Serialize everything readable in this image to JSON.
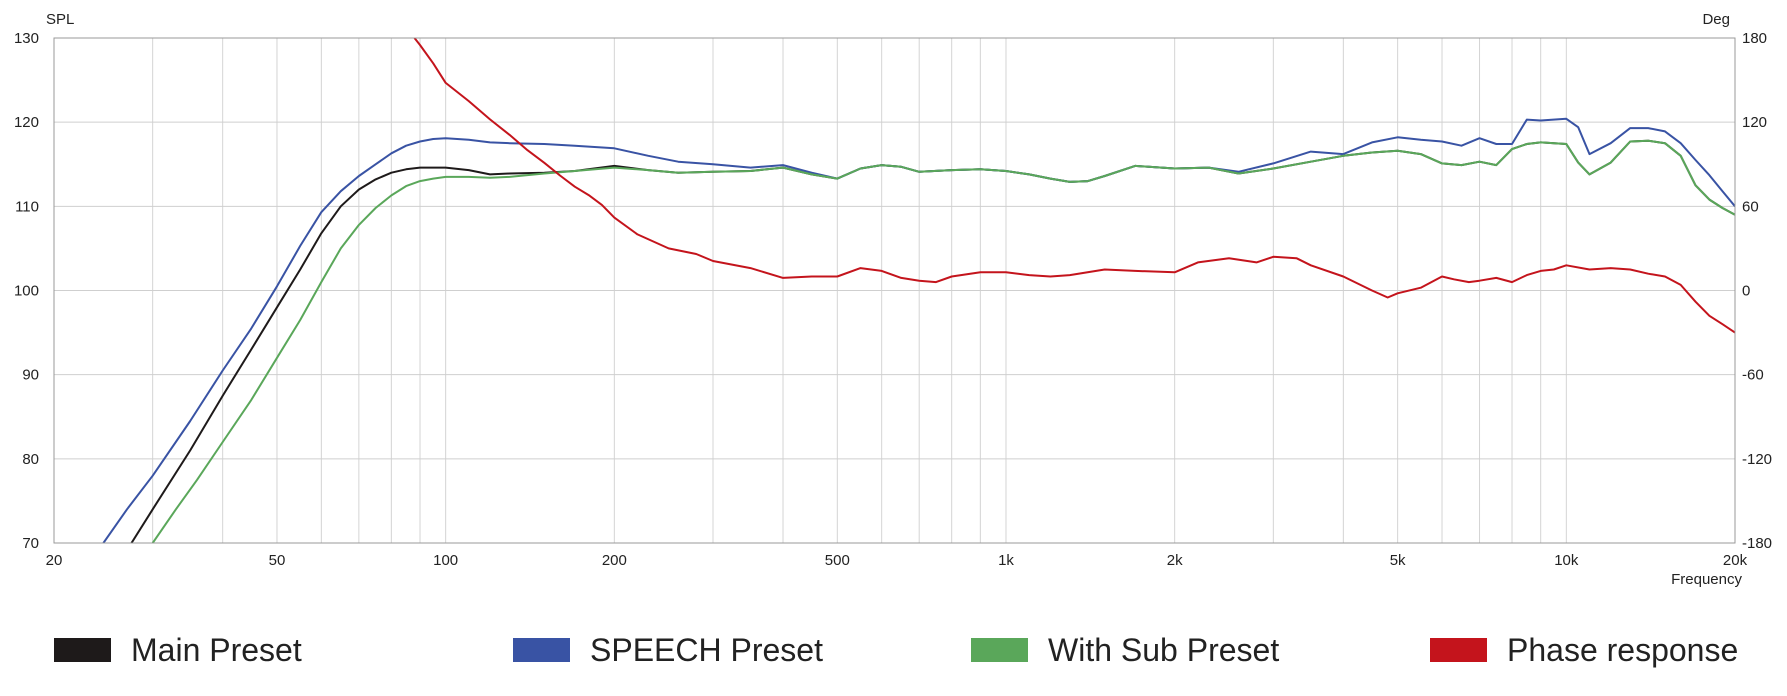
{
  "chart_data": {
    "type": "line",
    "title": "",
    "xlabel": "Frequency",
    "ylabel_left": "SPL",
    "ylabel_right": "Deg",
    "x_scale": "log",
    "xlim": [
      20,
      20000
    ],
    "ylim_left": [
      70,
      130
    ],
    "ylim_right": [
      -180,
      180
    ],
    "grid": true,
    "legend_position": "bottom",
    "x_ticks": [
      {
        "value": 20,
        "label": "20"
      },
      {
        "value": 50,
        "label": "50"
      },
      {
        "value": 100,
        "label": "100"
      },
      {
        "value": 200,
        "label": "200"
      },
      {
        "value": 500,
        "label": "500"
      },
      {
        "value": 1000,
        "label": "1k"
      },
      {
        "value": 2000,
        "label": "2k"
      },
      {
        "value": 5000,
        "label": "5k"
      },
      {
        "value": 10000,
        "label": "10k"
      },
      {
        "value": 20000,
        "label": "20k"
      }
    ],
    "y_ticks_left": [
      70,
      80,
      90,
      100,
      110,
      120,
      130
    ],
    "y_ticks_right": [
      -180,
      -120,
      -60,
      0,
      60,
      120,
      180
    ],
    "series": [
      {
        "name": "Main Preset",
        "axis": "left",
        "color": "#1e1a1a",
        "x": [
          27.5,
          30,
          35,
          40,
          45,
          50,
          55,
          60,
          65,
          70,
          75,
          80,
          85,
          90,
          95,
          100,
          110,
          120,
          130,
          150,
          170,
          200,
          230,
          260,
          300,
          350,
          400,
          450,
          500,
          550,
          600,
          650,
          700,
          800,
          900,
          1000,
          1100,
          1200,
          1300,
          1400,
          1500,
          1700,
          2000,
          2300,
          2600,
          3000,
          3500,
          4000,
          4500,
          5000,
          5500,
          6000,
          6500,
          7000,
          7500,
          8000,
          8500,
          9000,
          10000,
          10500,
          11000,
          12000,
          13000,
          14000,
          15000,
          16000,
          17000,
          18000,
          19000,
          20000
        ],
        "y": [
          70,
          74,
          81,
          87.5,
          93,
          98,
          102.5,
          106.8,
          110,
          112,
          113.2,
          114,
          114.4,
          114.6,
          114.6,
          114.6,
          114.3,
          113.8,
          113.9,
          114,
          114.2,
          114.8,
          114.3,
          114,
          114.1,
          114.2,
          114.6,
          113.8,
          113.3,
          114.5,
          114.9,
          114.7,
          114.1,
          114.3,
          114.4,
          114.2,
          113.8,
          113.3,
          112.9,
          113,
          113.6,
          114.8,
          114.5,
          114.6,
          113.9,
          114.5,
          115.3,
          116,
          116.4,
          116.6,
          116.2,
          115.1,
          114.9,
          115.3,
          114.9,
          116.8,
          117.4,
          117.6,
          117.4,
          115.2,
          113.8,
          115.2,
          117.7,
          117.8,
          117.5,
          116,
          112.5,
          110.8,
          109.8,
          109
        ]
      },
      {
        "name": "SPEECH Preset",
        "axis": "left",
        "color": "#3953a4",
        "x": [
          24.5,
          27,
          30,
          35,
          40,
          45,
          50,
          55,
          60,
          65,
          70,
          75,
          80,
          85,
          90,
          95,
          100,
          110,
          120,
          130,
          150,
          170,
          200,
          230,
          260,
          300,
          350,
          400,
          450,
          500,
          550,
          600,
          650,
          700,
          800,
          900,
          1000,
          1100,
          1200,
          1300,
          1400,
          1500,
          1700,
          2000,
          2300,
          2600,
          3000,
          3500,
          4000,
          4500,
          5000,
          5500,
          6000,
          6500,
          7000,
          7500,
          8000,
          8500,
          9000,
          10000,
          10500,
          11000,
          12000,
          13000,
          14000,
          15000,
          16000,
          17000,
          18000,
          19000,
          20000
        ],
        "y": [
          70,
          74,
          78,
          84.5,
          90.5,
          95.5,
          100.5,
          105.3,
          109.3,
          111.8,
          113.6,
          115,
          116.3,
          117.2,
          117.7,
          118,
          118.1,
          117.9,
          117.6,
          117.5,
          117.4,
          117.2,
          116.9,
          116,
          115.3,
          115,
          114.6,
          114.9,
          114,
          113.3,
          114.5,
          114.9,
          114.7,
          114.1,
          114.3,
          114.4,
          114.2,
          113.8,
          113.3,
          112.9,
          113,
          113.6,
          114.8,
          114.5,
          114.6,
          114.1,
          115.1,
          116.5,
          116.2,
          117.6,
          118.2,
          117.9,
          117.7,
          117.2,
          118.1,
          117.4,
          117.4,
          120.3,
          120.2,
          120.4,
          119.4,
          116.2,
          117.5,
          119.3,
          119.3,
          118.9,
          117.5,
          115.5,
          113.7,
          111.8,
          110
        ]
      },
      {
        "name": "With Sub Preset",
        "axis": "left",
        "color": "#5aa75a",
        "x": [
          30,
          33,
          36,
          40,
          45,
          50,
          55,
          60,
          65,
          70,
          75,
          80,
          85,
          90,
          95,
          100,
          110,
          120,
          130,
          150,
          170,
          200,
          230,
          260,
          300,
          350,
          400,
          450,
          500,
          550,
          600,
          650,
          700,
          800,
          900,
          1000,
          1100,
          1200,
          1300,
          1400,
          1500,
          1700,
          2000,
          2300,
          2600,
          3000,
          3500,
          4000,
          4500,
          5000,
          5500,
          6000,
          6500,
          7000,
          7500,
          8000,
          8500,
          9000,
          10000,
          10500,
          11000,
          12000,
          13000,
          14000,
          15000,
          16000,
          17000,
          18000,
          19000,
          20000
        ],
        "y": [
          70,
          74,
          77.5,
          82,
          87,
          92,
          96.5,
          101,
          105,
          107.8,
          109.8,
          111.3,
          112.4,
          113,
          113.3,
          113.5,
          113.5,
          113.4,
          113.5,
          113.9,
          114.2,
          114.6,
          114.3,
          114,
          114.1,
          114.2,
          114.6,
          113.8,
          113.3,
          114.5,
          114.9,
          114.7,
          114.1,
          114.3,
          114.4,
          114.2,
          113.8,
          113.3,
          112.9,
          113,
          113.6,
          114.8,
          114.5,
          114.6,
          113.9,
          114.5,
          115.3,
          116,
          116.4,
          116.6,
          116.2,
          115.1,
          114.9,
          115.3,
          114.9,
          116.8,
          117.4,
          117.6,
          117.4,
          115.2,
          113.8,
          115.2,
          117.7,
          117.8,
          117.5,
          116,
          112.5,
          110.8,
          109.8,
          109
        ]
      },
      {
        "name": "Phase response",
        "axis": "right",
        "color": "#c4141c",
        "x": [
          88,
          90,
          95,
          100,
          110,
          120,
          130,
          140,
          150,
          160,
          170,
          180,
          190,
          200,
          220,
          250,
          280,
          300,
          350,
          400,
          450,
          500,
          550,
          600,
          650,
          700,
          750,
          800,
          900,
          1000,
          1100,
          1200,
          1300,
          1500,
          1700,
          2000,
          2200,
          2500,
          2800,
          3000,
          3300,
          3500,
          4000,
          4500,
          4800,
          5000,
          5500,
          6000,
          6300,
          6700,
          7000,
          7500,
          8000,
          8500,
          9000,
          9500,
          10000,
          11000,
          12000,
          13000,
          14000,
          15000,
          16000,
          17000,
          18000,
          19000,
          20000
        ],
        "y": [
          180,
          175,
          162,
          148,
          135,
          122,
          111,
          100,
          91,
          82,
          74,
          68,
          61,
          52,
          40,
          30,
          26,
          21,
          16,
          9,
          10,
          10,
          16,
          14,
          9,
          7,
          6,
          10,
          13,
          13,
          11,
          10,
          11,
          15,
          14,
          13,
          20,
          23,
          20,
          24,
          23,
          18,
          10,
          0,
          -5,
          -2,
          2,
          10,
          8,
          6,
          7,
          9,
          6,
          11,
          14,
          15,
          18,
          15,
          16,
          15,
          12,
          10,
          4,
          -8,
          -18,
          -24,
          -30
        ]
      }
    ]
  }
}
